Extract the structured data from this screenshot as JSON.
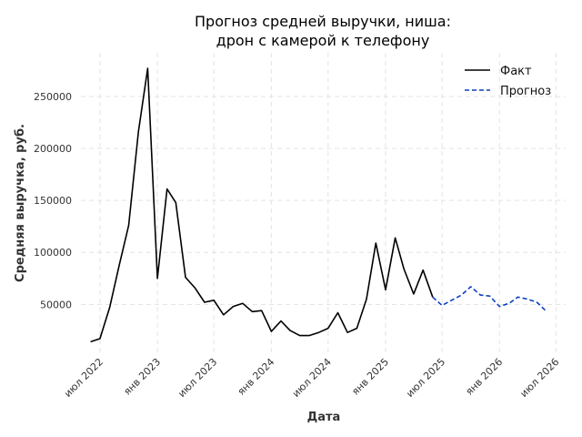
{
  "chart_data": {
    "type": "line",
    "title": [
      "Прогноз средней выручки, ниша:",
      "дрон с камерой к телефону"
    ],
    "xlabel": "Дата",
    "ylabel": "Средняя выручка, руб.",
    "grid": true,
    "legend_placement": "top-right",
    "x_ticks": [
      {
        "date": "2022-07-01",
        "label": "июл 2022"
      },
      {
        "date": "2023-01-01",
        "label": "янв 2023"
      },
      {
        "date": "2023-07-01",
        "label": "июл 2023"
      },
      {
        "date": "2024-01-01",
        "label": "янв 2024"
      },
      {
        "date": "2024-07-01",
        "label": "июл 2024"
      },
      {
        "date": "2025-01-01",
        "label": "янв 2025"
      },
      {
        "date": "2025-07-01",
        "label": "июл 2025"
      },
      {
        "date": "2026-01-01",
        "label": "янв 2026"
      },
      {
        "date": "2026-07-01",
        "label": "июл 2026"
      }
    ],
    "y_ticks": [
      {
        "value": 50000,
        "label": "50000"
      },
      {
        "value": 100000,
        "label": "100000"
      },
      {
        "value": 150000,
        "label": "150000"
      },
      {
        "value": 200000,
        "label": "200000"
      },
      {
        "value": 250000,
        "label": "250000"
      }
    ],
    "xlim": [
      "2022-05-01",
      "2026-08-01"
    ],
    "ylim": [
      3000,
      292000
    ],
    "series": [
      {
        "name": "Факт",
        "color": "#000000",
        "style": "solid",
        "points": [
          {
            "x": "2022-06-01",
            "y": 14000
          },
          {
            "x": "2022-07-01",
            "y": 17000
          },
          {
            "x": "2022-08-01",
            "y": 47000
          },
          {
            "x": "2022-09-01",
            "y": 88000
          },
          {
            "x": "2022-10-01",
            "y": 126000
          },
          {
            "x": "2022-11-01",
            "y": 216000
          },
          {
            "x": "2022-12-01",
            "y": 277000
          },
          {
            "x": "2023-01-01",
            "y": 75000
          },
          {
            "x": "2023-02-01",
            "y": 161000
          },
          {
            "x": "2023-03-01",
            "y": 148000
          },
          {
            "x": "2023-04-01",
            "y": 76000
          },
          {
            "x": "2023-05-01",
            "y": 66000
          },
          {
            "x": "2023-06-01",
            "y": 52000
          },
          {
            "x": "2023-07-01",
            "y": 54000
          },
          {
            "x": "2023-08-01",
            "y": 40000
          },
          {
            "x": "2023-09-01",
            "y": 48000
          },
          {
            "x": "2023-10-01",
            "y": 51000
          },
          {
            "x": "2023-11-01",
            "y": 43000
          },
          {
            "x": "2023-12-01",
            "y": 44000
          },
          {
            "x": "2024-01-01",
            "y": 24000
          },
          {
            "x": "2024-02-01",
            "y": 34000
          },
          {
            "x": "2024-03-01",
            "y": 25000
          },
          {
            "x": "2024-04-01",
            "y": 20000
          },
          {
            "x": "2024-05-01",
            "y": 20000
          },
          {
            "x": "2024-06-01",
            "y": 23000
          },
          {
            "x": "2024-07-01",
            "y": 27000
          },
          {
            "x": "2024-08-01",
            "y": 42000
          },
          {
            "x": "2024-09-01",
            "y": 23000
          },
          {
            "x": "2024-10-01",
            "y": 27000
          },
          {
            "x": "2024-11-01",
            "y": 55000
          },
          {
            "x": "2024-12-01",
            "y": 109000
          },
          {
            "x": "2025-01-01",
            "y": 64000
          },
          {
            "x": "2025-02-01",
            "y": 114000
          },
          {
            "x": "2025-03-01",
            "y": 84000
          },
          {
            "x": "2025-04-01",
            "y": 60000
          },
          {
            "x": "2025-05-01",
            "y": 83000
          },
          {
            "x": "2025-06-01",
            "y": 57000
          }
        ]
      },
      {
        "name": "Прогноз",
        "color": "#0a3fc2",
        "style": "dashed",
        "points": [
          {
            "x": "2025-06-01",
            "y": 57000
          },
          {
            "x": "2025-07-01",
            "y": 49000
          },
          {
            "x": "2025-08-01",
            "y": 54000
          },
          {
            "x": "2025-09-01",
            "y": 59000
          },
          {
            "x": "2025-10-01",
            "y": 67000
          },
          {
            "x": "2025-11-01",
            "y": 59000
          },
          {
            "x": "2025-12-01",
            "y": 58000
          },
          {
            "x": "2026-01-01",
            "y": 48000
          },
          {
            "x": "2026-02-01",
            "y": 51000
          },
          {
            "x": "2026-03-01",
            "y": 57000
          },
          {
            "x": "2026-04-01",
            "y": 55000
          },
          {
            "x": "2026-05-01",
            "y": 52000
          },
          {
            "x": "2026-06-01",
            "y": 43000
          }
        ]
      }
    ]
  }
}
